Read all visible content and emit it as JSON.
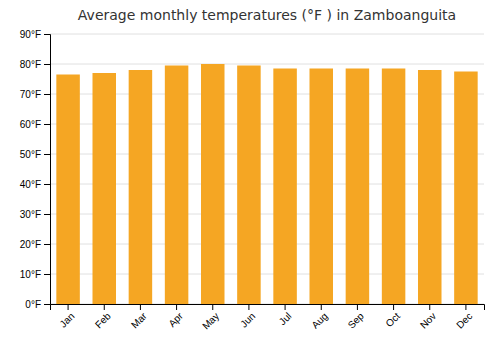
{
  "chart_data": {
    "type": "bar",
    "title": "Average monthly temperatures (°F ) in Zamboanguita",
    "categories": [
      "Jan",
      "Feb",
      "Mar",
      "Apr",
      "May",
      "Jun",
      "Jul",
      "Aug",
      "Sep",
      "Oct",
      "Nov",
      "Dec"
    ],
    "values": [
      76.5,
      77.0,
      78.0,
      79.5,
      80.0,
      79.5,
      78.5,
      78.5,
      78.5,
      78.5,
      78.0,
      77.5
    ],
    "color": "#F5A623",
    "ylim": [
      0,
      90
    ],
    "yticks": [
      {
        "value": 0,
        "label": "0°F"
      },
      {
        "value": 10,
        "label": "10°F"
      },
      {
        "value": 20,
        "label": "20°F"
      },
      {
        "value": 30,
        "label": "30°F"
      },
      {
        "value": 40,
        "label": "40°F"
      },
      {
        "value": 50,
        "label": "50°F"
      },
      {
        "value": 60,
        "label": "60°F"
      },
      {
        "value": 70,
        "label": "70°F"
      },
      {
        "value": 80,
        "label": "80°F"
      },
      {
        "value": 90,
        "label": "90°F"
      }
    ],
    "grid": true
  }
}
